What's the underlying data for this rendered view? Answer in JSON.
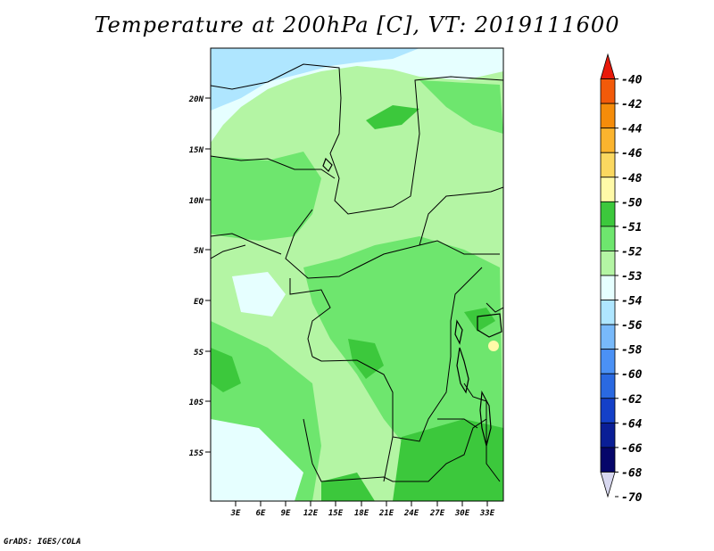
{
  "title": "Temperature at 200hPa [C], VT: 2019111600",
  "credit": "GrADS: IGES/COLA",
  "map": {
    "lon_ticks": [
      "3E",
      "6E",
      "9E",
      "12E",
      "15E",
      "18E",
      "21E",
      "24E",
      "27E",
      "30E",
      "33E"
    ],
    "lat_ticks": [
      "20N",
      "15N",
      "10N",
      "5N",
      "EQ",
      "5S",
      "10S",
      "15S"
    ]
  },
  "colorbar": {
    "labels": [
      "-40",
      "-42",
      "-44",
      "-46",
      "-48",
      "-50",
      "-51",
      "-52",
      "-53",
      "-54",
      "-56",
      "-58",
      "-60",
      "-62",
      "-64",
      "-66",
      "-68",
      "-70"
    ],
    "colors": [
      "#e8190a",
      "#f25a0a",
      "#f58c0a",
      "#fbb42e",
      "#fbd860",
      "#fffaa8",
      "#3cc83c",
      "#6ee66e",
      "#b4f5a4",
      "#e6ffff",
      "#afe6ff",
      "#78b9fa",
      "#4b91f5",
      "#2a69e1",
      "#1440c8",
      "#0a1e96",
      "#06066a",
      "#d8d8f0"
    ]
  }
}
